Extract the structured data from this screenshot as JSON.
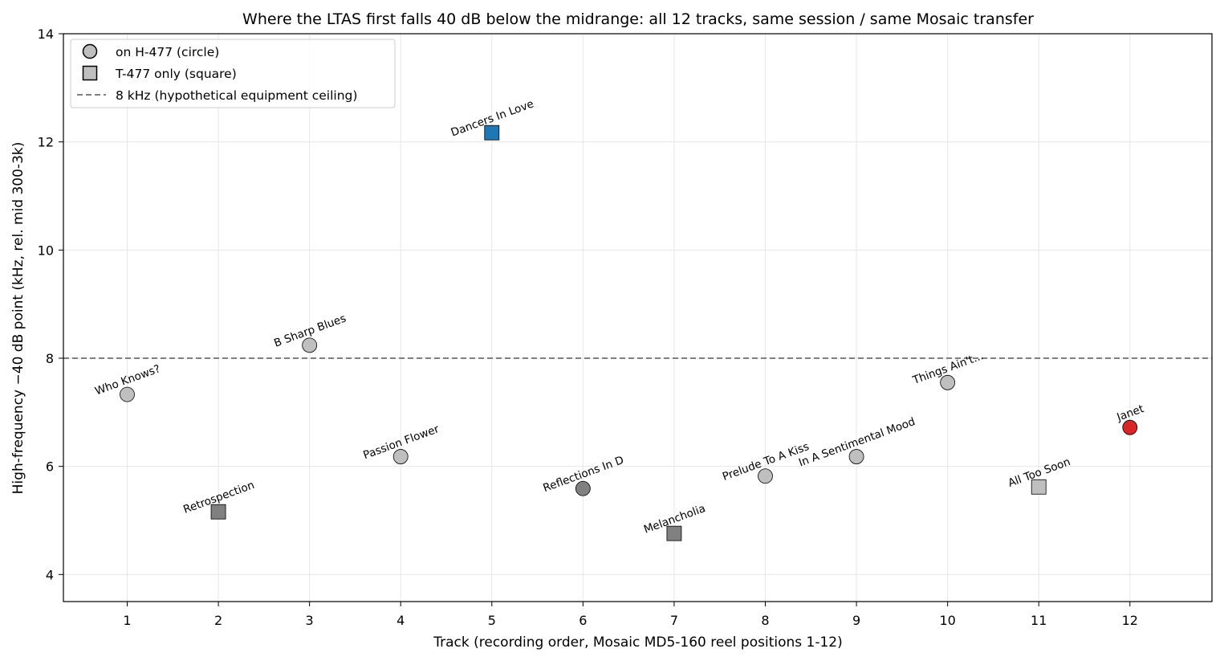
{
  "chart_data": {
    "type": "scatter",
    "title": "Where the LTAS first falls 40 dB below the midrange: all 12 tracks, same session / same Mosaic transfer",
    "xlabel": "Track (recording order, Mosaic MD5-160 reel positions 1-12)",
    "ylabel": "High-frequency −40 dB point (kHz, rel. mid 300-3k)",
    "xlim": [
      0.3,
      12.9
    ],
    "ylim": [
      3.5,
      14
    ],
    "xticks": [
      "1",
      "2",
      "3",
      "4",
      "5",
      "6",
      "7",
      "8",
      "9",
      "10",
      "11",
      "12"
    ],
    "yticks": [
      "4",
      "6",
      "8",
      "10",
      "12",
      "14"
    ],
    "grid": true,
    "legend_position": "top-left",
    "legend": [
      {
        "label": "on H-477 (circle)",
        "marker": "circle"
      },
      {
        "label": "T-477 only (square)",
        "marker": "square"
      },
      {
        "label": "8 kHz (hypothetical equipment ceiling)",
        "marker": "dashed-line"
      }
    ],
    "reference_line": {
      "y": 8,
      "color": "#808080",
      "style": "dashed"
    },
    "points": [
      {
        "x": 1,
        "y": 7.33,
        "label": "Who Knows?",
        "marker": "circle",
        "color": "#bfbfbf"
      },
      {
        "x": 2,
        "y": 5.16,
        "label": "Retrospection",
        "marker": "square",
        "color": "#808080"
      },
      {
        "x": 3,
        "y": 8.24,
        "label": "B Sharp Blues",
        "marker": "circle",
        "color": "#bfbfbf"
      },
      {
        "x": 4,
        "y": 6.18,
        "label": "Passion Flower",
        "marker": "circle",
        "color": "#bfbfbf"
      },
      {
        "x": 5,
        "y": 12.17,
        "label": "Dancers In Love",
        "marker": "square",
        "color": "#1f77b4"
      },
      {
        "x": 6,
        "y": 5.59,
        "label": "Reflections In D",
        "marker": "circle",
        "color": "#808080"
      },
      {
        "x": 7,
        "y": 4.76,
        "label": "Melancholia",
        "marker": "square",
        "color": "#808080"
      },
      {
        "x": 8,
        "y": 5.82,
        "label": "Prelude To A Kiss",
        "marker": "circle",
        "color": "#bfbfbf"
      },
      {
        "x": 9,
        "y": 6.18,
        "label": "In A Sentimental Mood",
        "marker": "circle",
        "color": "#bfbfbf"
      },
      {
        "x": 10,
        "y": 7.55,
        "label": "Things Ain't...",
        "marker": "circle",
        "color": "#bfbfbf"
      },
      {
        "x": 11,
        "y": 5.62,
        "label": "All Too Soon",
        "marker": "square",
        "color": "#bfbfbf"
      },
      {
        "x": 12,
        "y": 6.72,
        "label": "Janet",
        "marker": "circle",
        "color": "#d62728"
      }
    ]
  }
}
